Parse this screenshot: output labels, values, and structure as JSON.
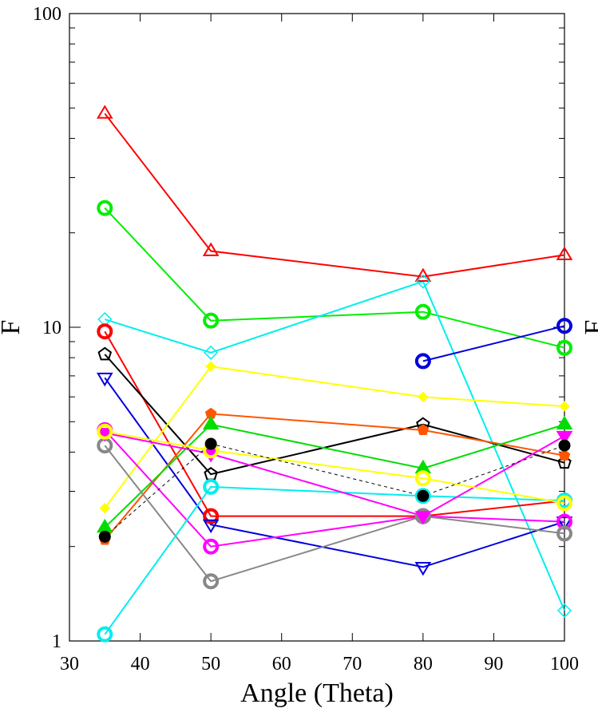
{
  "chart_data": {
    "type": "line",
    "title": "",
    "xlabel": "Angle (Theta)",
    "ylabel": "F",
    "right_ylabel": "F",
    "yscale": "log",
    "xlim": [
      30,
      100
    ],
    "ylim": [
      1,
      100
    ],
    "x_ticks": [
      "30",
      "40",
      "50",
      "60",
      "70",
      "80",
      "90",
      "100"
    ],
    "y_ticks": [
      "1",
      "10",
      "100"
    ],
    "grid": false,
    "series": [
      {
        "color": "#ff0000",
        "marker": "triangle-up-open",
        "dash": "solid",
        "x": [
          35,
          50,
          80,
          100
        ],
        "y": [
          48,
          17.5,
          14.5,
          17
        ]
      },
      {
        "color": "#00ee00",
        "marker": "circle-open",
        "dash": "solid",
        "x": [
          35,
          50,
          80,
          100
        ],
        "y": [
          24,
          10.5,
          11.2,
          8.6
        ]
      },
      {
        "color": "#00eeee",
        "marker": "diamond-open",
        "dash": "solid",
        "x": [
          35,
          50,
          80,
          100
        ],
        "y": [
          10.6,
          8.3,
          14,
          1.25
        ]
      },
      {
        "color": "#0000dd",
        "marker": "circle-open",
        "dash": "solid",
        "x": [
          80,
          100
        ],
        "y": [
          7.8,
          10.1
        ]
      },
      {
        "color": "#ff0000",
        "marker": "circle-open",
        "dash": "solid",
        "x": [
          35,
          50,
          80,
          100
        ],
        "y": [
          9.7,
          2.5,
          2.5,
          2.8
        ]
      },
      {
        "color": "#000000",
        "marker": "pentagon-open",
        "dash": "solid",
        "x": [
          35,
          50,
          80,
          100
        ],
        "y": [
          8.2,
          3.4,
          4.9,
          3.7
        ]
      },
      {
        "color": "#0000dd",
        "marker": "triangle-down-open",
        "dash": "solid",
        "x": [
          35,
          50,
          80,
          100
        ],
        "y": [
          6.9,
          2.35,
          1.72,
          2.4
        ]
      },
      {
        "color": "#ffff00",
        "marker": "diamond-filled",
        "dash": "solid",
        "x": [
          35,
          50,
          80,
          100
        ],
        "y": [
          2.65,
          7.5,
          6.0,
          5.6
        ]
      },
      {
        "color": "#ff5500",
        "marker": "pentagon-filled",
        "dash": "solid",
        "x": [
          35,
          50,
          80,
          100
        ],
        "y": [
          2.1,
          5.3,
          4.7,
          3.9
        ]
      },
      {
        "color": "#00dd00",
        "marker": "triangle-up-filled",
        "dash": "solid",
        "x": [
          35,
          50,
          80,
          100
        ],
        "y": [
          2.3,
          4.9,
          3.55,
          4.9
        ]
      },
      {
        "color": "#ff00ff",
        "marker": "circle-open",
        "dash": "solid",
        "x": [
          35,
          50,
          80,
          100
        ],
        "y": [
          4.7,
          2.0,
          2.5,
          2.4
        ]
      },
      {
        "color": "#888888",
        "marker": "circle-open",
        "dash": "solid",
        "x": [
          35,
          50,
          80,
          100
        ],
        "y": [
          4.2,
          1.55,
          2.5,
          2.2
        ]
      },
      {
        "color": "#00eeee",
        "marker": "circle-open",
        "dash": "solid",
        "x": [
          35,
          50,
          80,
          100
        ],
        "y": [
          1.05,
          3.1,
          2.9,
          2.8
        ]
      },
      {
        "color": "#ff00ff",
        "marker": "triangle-down-filled",
        "dash": "solid",
        "x": [
          35,
          50,
          80,
          100
        ],
        "y": [
          4.6,
          3.95,
          2.5,
          4.5
        ]
      },
      {
        "color": "#ffff00",
        "marker": "circle-open",
        "dash": "solid",
        "x": [
          35,
          50,
          80,
          100
        ],
        "y": [
          4.65,
          4.05,
          3.3,
          2.75
        ]
      },
      {
        "color": "#000000",
        "marker": "circle-filled",
        "dash": "dashed",
        "x": [
          35,
          50,
          80,
          100
        ],
        "y": [
          2.15,
          4.25,
          2.9,
          4.2
        ]
      }
    ]
  }
}
